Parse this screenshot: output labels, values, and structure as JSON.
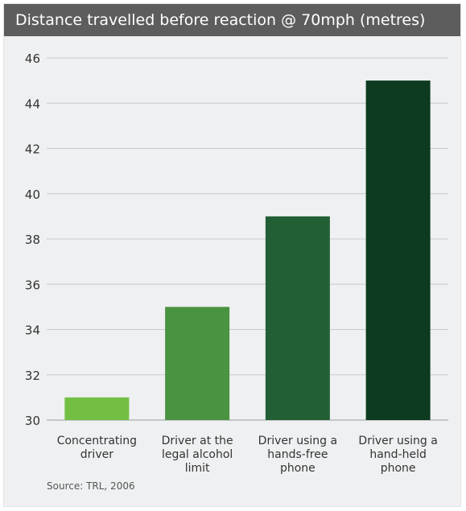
{
  "title": "Distance travelled before reaction @ 70mph (metres)",
  "source": "Source: TRL, 2006",
  "colors": {
    "title_bar": "#5d5d5d",
    "panel": "#eff0f1",
    "gridline": "#c9cacb",
    "bar_colors": [
      "#72bf44",
      "#4a9340",
      "#235f35",
      "#0c3b20"
    ]
  },
  "chart_data": {
    "type": "bar",
    "title": "Distance travelled before reaction @ 70mph (metres)",
    "categories": [
      [
        "Concentrating",
        "driver"
      ],
      [
        "Driver at the",
        "legal alcohol",
        "limit"
      ],
      [
        "Driver using a",
        "hands-free",
        "phone"
      ],
      [
        "Driver using a",
        "hand-held",
        "phone"
      ]
    ],
    "values": [
      31,
      35,
      39,
      45
    ],
    "ylim": [
      30,
      46
    ],
    "yticks": [
      30,
      32,
      34,
      36,
      38,
      40,
      42,
      44,
      46
    ],
    "grid": true,
    "legend": "none"
  }
}
